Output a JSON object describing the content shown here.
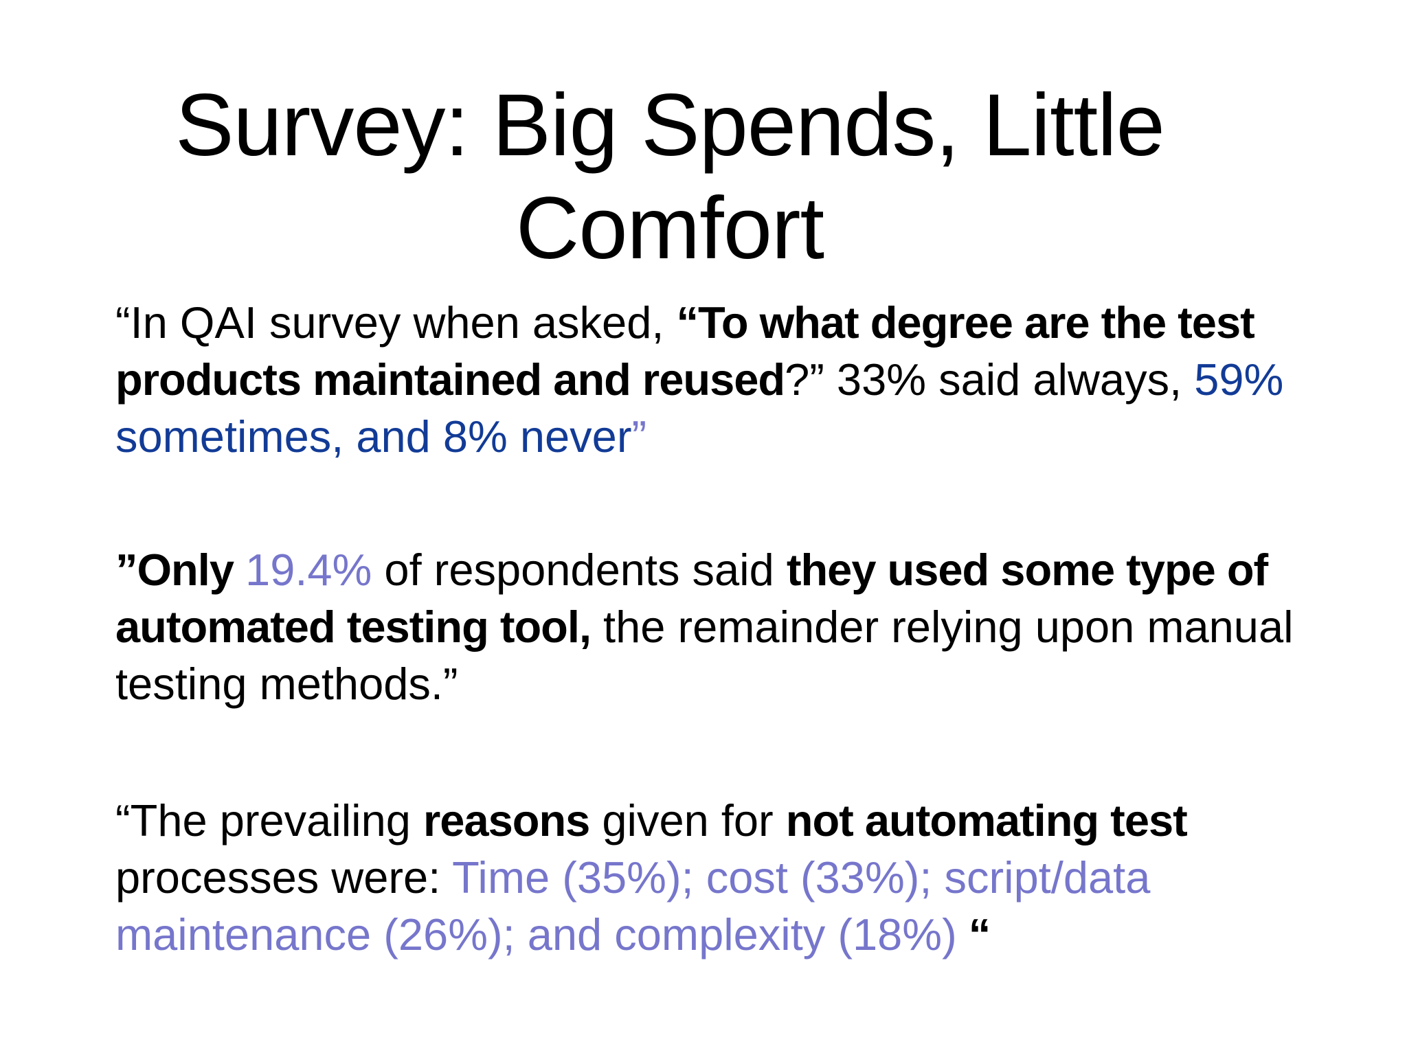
{
  "slide": {
    "title_line1": "Survey: Big Spends, Little",
    "title_line2": "Comfort",
    "p1": {
      "t1": "“In QAI survey when asked, ",
      "t2": "“To what degree are the test products maintained and reused",
      "t3": "?” 33% said always, ",
      "t4": "59% sometimes, and 8% never",
      "t5": "”"
    },
    "p2": {
      "t1": "”Only ",
      "t2": "19.4%",
      "t3": " of respondents said ",
      "t4": "they used some type of automated testing tool,",
      "t5": " the remainder relying upon manual testing methods.”"
    },
    "p3": {
      "t1": "“The prevailing ",
      "t2": "reasons",
      "t3": " given for ",
      "t4": "not automating test",
      "t5": " processes were: ",
      "t6": "Time (35%); cost (33%); script/data maintenance (26%); and complexity (18%)",
      "t7": " “"
    }
  },
  "colors": {
    "text": "#000000",
    "dark_blue": "#123b96",
    "lavender": "#7676cc",
    "background": "#ffffff"
  }
}
